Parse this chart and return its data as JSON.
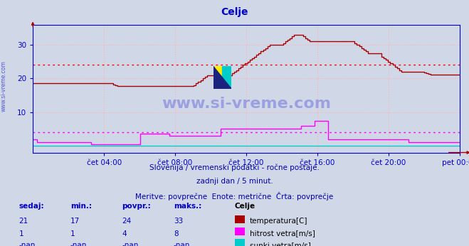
{
  "title": "Celje",
  "title_color": "#0000cc",
  "background_color": "#d0d8e8",
  "plot_bg_color": "#d0d8e8",
  "grid_color": "#ffb0b0",
  "axis_color": "#0000cc",
  "watermark_text": "www.si-vreme.com",
  "watermark_color": "#0000cc",
  "ylim": [
    -2,
    36
  ],
  "yticks": [
    10,
    20,
    30
  ],
  "xtick_labels": [
    "čet 04:00",
    "čet 08:00",
    "čet 12:00",
    "čet 16:00",
    "čet 20:00",
    "pet 00:00"
  ],
  "xtick_positions": [
    0.167,
    0.333,
    0.5,
    0.667,
    0.833,
    1.0
  ],
  "temp_color": "#aa0000",
  "temp_avg_line": 24,
  "temp_avg_color": "#ff0000",
  "wind_color": "#ff00ff",
  "wind_avg_line": 4,
  "wind_avg_color": "#ff00ff",
  "sunki_color": "#00cccc",
  "subtitle1": "Slovenija / vremenski podatki - ročne postaje.",
  "subtitle2": "zadnji dan / 5 minut.",
  "subtitle3": "Meritve: povprečne  Enote: metrične  Črta: povprečje",
  "subtitle_color": "#0000aa",
  "footer_sedaj": "sedaj:",
  "footer_min": "min.:",
  "footer_povpr": "povpr.:",
  "footer_maks": "maks.:",
  "footer_loc": "Celje",
  "temp_sedaj": "21",
  "temp_min": "17",
  "temp_povpr": "24",
  "temp_maks": "33",
  "wind_sedaj": "1",
  "wind_min": "1",
  "wind_povpr": "4",
  "wind_maks": "8",
  "sunki_sedaj": "-nan",
  "sunki_min": "-nan",
  "sunki_povpr": "-nan",
  "sunki_maks": "-nan",
  "temp_data": [
    18.5,
    18.5,
    18.5,
    18.5,
    18.5,
    18.5,
    18.5,
    18.5,
    18.5,
    18.5,
    18.5,
    18.5,
    18.5,
    18.5,
    18.5,
    18.5,
    18.5,
    18.5,
    18.5,
    18.5,
    18.5,
    18.5,
    18.5,
    18.5,
    18.5,
    18.5,
    18.5,
    18.5,
    18.5,
    18.5,
    18.5,
    18.5,
    18.5,
    18.5,
    18.5,
    18.5,
    18.2,
    18.0,
    17.8,
    17.8,
    17.8,
    17.8,
    17.8,
    17.8,
    17.8,
    17.8,
    17.8,
    17.8,
    17.8,
    17.8,
    17.8,
    17.8,
    17.8,
    17.8,
    17.8,
    17.8,
    17.8,
    17.8,
    17.8,
    17.8,
    17.8,
    17.8,
    17.8,
    17.8,
    17.8,
    17.8,
    17.8,
    17.8,
    17.8,
    17.8,
    17.8,
    17.8,
    18.0,
    18.5,
    19.0,
    19.5,
    20.0,
    20.5,
    21.0,
    21.0,
    21.0,
    21.0,
    21.0,
    21.0,
    21.0,
    21.0,
    21.0,
    21.0,
    21.0,
    21.5,
    22.0,
    22.5,
    23.0,
    23.5,
    24.0,
    24.5,
    25.0,
    25.5,
    26.0,
    26.5,
    27.0,
    27.5,
    28.0,
    28.5,
    29.0,
    29.5,
    30.0,
    30.0,
    30.0,
    30.0,
    30.0,
    30.0,
    30.5,
    31.0,
    31.5,
    32.0,
    32.5,
    33.0,
    33.0,
    33.0,
    33.0,
    32.5,
    32.0,
    31.5,
    31.0,
    31.0,
    31.0,
    31.0,
    31.0,
    31.0,
    31.0,
    31.0,
    31.0,
    31.0,
    31.0,
    31.0,
    31.0,
    31.0,
    31.0,
    31.0,
    31.0,
    31.0,
    31.0,
    31.0,
    30.5,
    30.0,
    29.5,
    29.0,
    28.5,
    28.0,
    27.5,
    27.5,
    27.5,
    27.5,
    27.5,
    27.5,
    26.5,
    26.0,
    25.5,
    25.0,
    24.5,
    24.0,
    23.5,
    23.0,
    22.5,
    22.0,
    22.0,
    22.0,
    22.0,
    22.0,
    22.0,
    22.0,
    22.0,
    22.0,
    22.0,
    21.8,
    21.5,
    21.3,
    21.2,
    21.2,
    21.2,
    21.2,
    21.2,
    21.2,
    21.2,
    21.2,
    21.2,
    21.2,
    21.2,
    21.2,
    21.2,
    21.2
  ],
  "wind_data": [
    2.0,
    2.0,
    1.0,
    1.0,
    1.0,
    1.0,
    1.0,
    1.0,
    1.0,
    1.0,
    1.0,
    1.0,
    1.0,
    1.0,
    1.0,
    1.0,
    1.0,
    1.0,
    1.0,
    1.0,
    1.0,
    1.0,
    1.0,
    1.0,
    1.0,
    1.0,
    0.5,
    0.5,
    0.5,
    0.5,
    0.5,
    0.5,
    0.5,
    0.5,
    0.5,
    0.5,
    0.5,
    0.5,
    0.5,
    0.5,
    0.5,
    0.5,
    0.5,
    0.5,
    0.5,
    0.5,
    0.5,
    0.5,
    3.5,
    3.5,
    3.5,
    3.5,
    3.5,
    3.5,
    3.5,
    3.5,
    3.5,
    3.5,
    3.5,
    3.5,
    3.5,
    3.0,
    3.0,
    3.0,
    3.0,
    3.0,
    3.0,
    3.0,
    3.0,
    3.0,
    3.0,
    3.0,
    3.0,
    3.0,
    3.0,
    3.0,
    3.0,
    3.0,
    3.0,
    3.0,
    3.0,
    3.0,
    3.0,
    3.0,
    5.0,
    5.0,
    5.0,
    5.0,
    5.0,
    5.0,
    5.0,
    5.0,
    5.0,
    5.0,
    5.0,
    5.0,
    5.0,
    5.0,
    5.0,
    5.0,
    5.0,
    5.0,
    5.0,
    5.0,
    5.0,
    5.0,
    5.0,
    5.0,
    5.0,
    5.0,
    5.0,
    5.0,
    5.0,
    5.0,
    5.0,
    5.0,
    5.0,
    5.0,
    5.0,
    5.0,
    6.0,
    6.0,
    6.0,
    6.0,
    6.0,
    6.0,
    7.5,
    7.5,
    7.5,
    7.5,
    7.5,
    7.5,
    2.0,
    2.0,
    2.0,
    2.0,
    2.0,
    2.0,
    2.0,
    2.0,
    2.0,
    2.0,
    2.0,
    2.0,
    2.0,
    2.0,
    2.0,
    2.0,
    2.0,
    2.0,
    2.0,
    2.0,
    2.0,
    2.0,
    2.0,
    2.0,
    2.0,
    2.0,
    2.0,
    2.0,
    2.0,
    2.0,
    2.0,
    2.0,
    2.0,
    2.0,
    2.0,
    2.0,
    1.0,
    1.0,
    1.0,
    1.0,
    1.0,
    1.0,
    1.0,
    1.0,
    1.0,
    1.0,
    1.0,
    1.0,
    1.0,
    1.0,
    1.0,
    1.0,
    1.0,
    1.0,
    1.0,
    1.0,
    1.0,
    1.0,
    1.0,
    1.0
  ],
  "sunki_data": [
    0,
    0,
    0,
    0,
    0,
    0,
    0,
    0,
    0,
    0,
    0,
    0,
    0,
    0,
    0,
    0,
    0,
    0,
    0,
    0,
    0,
    0,
    0,
    0,
    0,
    0,
    0,
    0,
    0,
    0,
    0,
    0,
    0,
    0,
    0,
    0,
    0,
    0,
    0,
    0,
    0,
    0,
    0,
    0,
    0,
    0,
    0,
    0,
    0,
    0,
    0,
    0,
    0,
    0,
    0,
    0,
    0,
    0,
    0,
    0,
    0,
    0,
    0,
    0,
    0,
    0,
    0,
    0,
    0,
    0,
    0,
    0,
    0,
    0,
    0,
    0,
    0,
    0,
    0,
    0,
    0,
    0,
    0,
    0,
    0,
    0,
    0,
    0,
    0,
    0,
    0,
    0,
    0,
    0,
    0,
    0,
    0,
    0,
    0,
    0,
    0,
    0,
    0,
    0,
    0,
    0,
    0,
    0,
    0,
    0,
    0,
    0,
    0,
    0,
    0,
    0,
    0,
    0,
    0,
    0,
    0,
    0,
    0,
    0,
    0,
    0,
    0,
    0,
    0,
    0,
    0,
    0,
    0,
    0,
    0,
    0,
    0,
    0,
    0,
    0,
    0,
    0,
    0,
    0,
    0,
    0,
    0,
    0,
    0,
    0,
    0,
    0,
    0,
    0,
    0,
    0,
    0,
    0,
    0,
    0,
    0,
    0,
    0,
    0,
    0,
    0,
    0,
    0,
    0,
    0,
    0,
    0,
    0,
    0,
    0,
    0,
    0,
    0,
    0,
    0,
    0,
    0,
    0,
    0,
    0,
    0,
    0,
    0,
    0,
    0,
    0,
    0
  ]
}
